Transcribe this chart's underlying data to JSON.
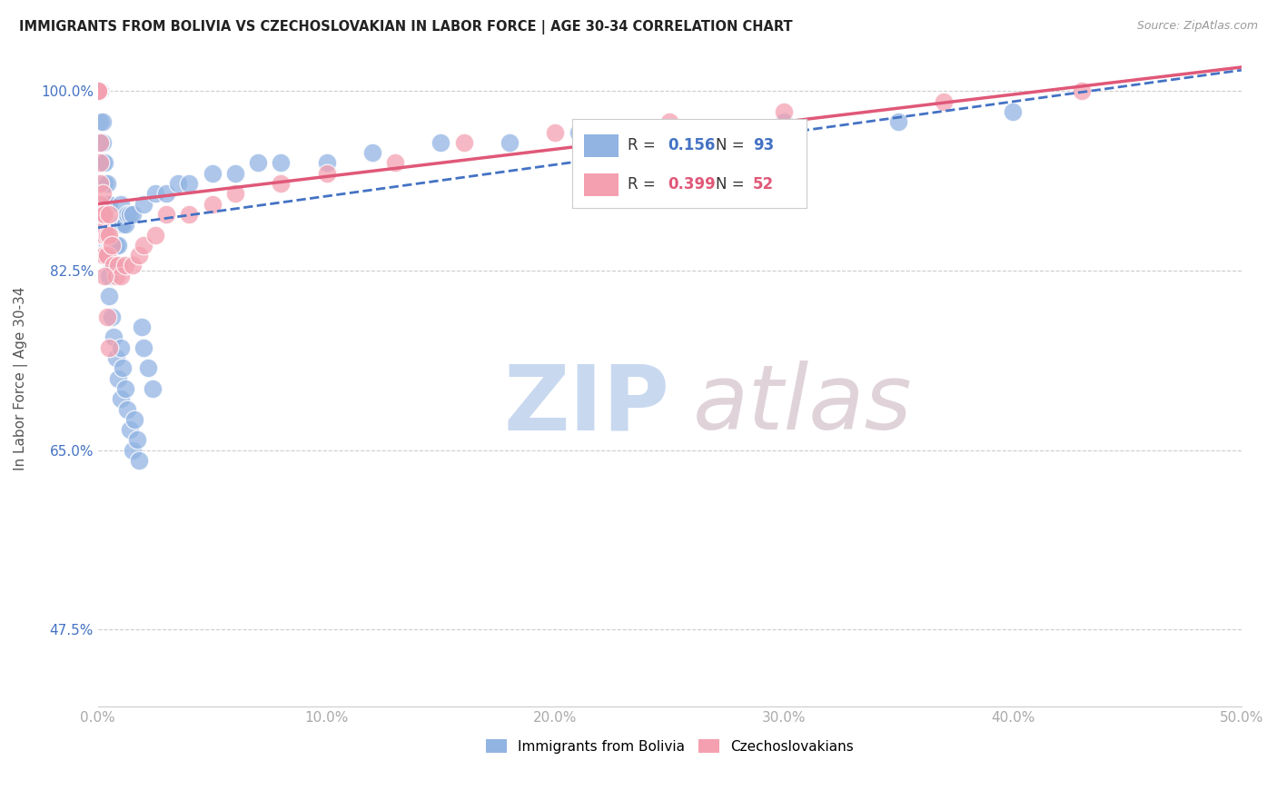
{
  "title": "IMMIGRANTS FROM BOLIVIA VS CZECHOSLOVAKIAN IN LABOR FORCE | AGE 30-34 CORRELATION CHART",
  "source": "Source: ZipAtlas.com",
  "xlabel_ticks": [
    "0.0%",
    "10.0%",
    "20.0%",
    "30.0%",
    "40.0%",
    "50.0%"
  ],
  "ylabel_ticks": [
    "47.5%",
    "65.0%",
    "82.5%",
    "100.0%"
  ],
  "ylabel_label": "In Labor Force | Age 30-34",
  "legend_bolivia": "Immigrants from Bolivia",
  "legend_czech": "Czechoslovakians",
  "R_bolivia": 0.156,
  "N_bolivia": 93,
  "R_czech": 0.399,
  "N_czech": 52,
  "bolivia_color": "#92b4e3",
  "czech_color": "#f4a0b0",
  "bolivia_line_color": "#4472c4",
  "czech_line_color": "#e05878",
  "xlim": [
    0.0,
    0.5
  ],
  "ylim": [
    0.4,
    1.04
  ],
  "bolivia_x": [
    0.0,
    0.0,
    0.0,
    0.0,
    0.0,
    0.0,
    0.0,
    0.0,
    0.0,
    0.0,
    0.001,
    0.001,
    0.001,
    0.001,
    0.001,
    0.001,
    0.001,
    0.001,
    0.002,
    0.002,
    0.002,
    0.002,
    0.002,
    0.002,
    0.003,
    0.003,
    0.003,
    0.003,
    0.003,
    0.004,
    0.004,
    0.004,
    0.004,
    0.005,
    0.005,
    0.005,
    0.006,
    0.006,
    0.006,
    0.007,
    0.007,
    0.008,
    0.008,
    0.009,
    0.009,
    0.01,
    0.01,
    0.011,
    0.012,
    0.013,
    0.014,
    0.015,
    0.02,
    0.025,
    0.03,
    0.035,
    0.04,
    0.05,
    0.06,
    0.07,
    0.08,
    0.1,
    0.12,
    0.15,
    0.18,
    0.21,
    0.25,
    0.3,
    0.35,
    0.4,
    0.002,
    0.003,
    0.004,
    0.005,
    0.005,
    0.006,
    0.007,
    0.008,
    0.009,
    0.01,
    0.01,
    0.011,
    0.012,
    0.013,
    0.014,
    0.015,
    0.016,
    0.017,
    0.018,
    0.019,
    0.02,
    0.022,
    0.024
  ],
  "bolivia_y": [
    1.0,
    1.0,
    1.0,
    1.0,
    1.0,
    1.0,
    1.0,
    1.0,
    1.0,
    1.0,
    1.0,
    1.0,
    1.0,
    1.0,
    0.97,
    0.95,
    0.93,
    0.91,
    0.97,
    0.95,
    0.93,
    0.91,
    0.89,
    0.87,
    0.93,
    0.91,
    0.89,
    0.87,
    0.85,
    0.91,
    0.89,
    0.87,
    0.85,
    0.89,
    0.87,
    0.85,
    0.87,
    0.85,
    0.83,
    0.85,
    0.83,
    0.87,
    0.85,
    0.87,
    0.85,
    0.89,
    0.87,
    0.87,
    0.87,
    0.88,
    0.88,
    0.88,
    0.89,
    0.9,
    0.9,
    0.91,
    0.91,
    0.92,
    0.92,
    0.93,
    0.93,
    0.93,
    0.94,
    0.95,
    0.95,
    0.96,
    0.96,
    0.97,
    0.97,
    0.98,
    0.88,
    0.86,
    0.84,
    0.82,
    0.8,
    0.78,
    0.76,
    0.74,
    0.72,
    0.7,
    0.75,
    0.73,
    0.71,
    0.69,
    0.67,
    0.65,
    0.68,
    0.66,
    0.64,
    0.77,
    0.75,
    0.73,
    0.71
  ],
  "czech_x": [
    0.0,
    0.0,
    0.0,
    0.0,
    0.0,
    0.0,
    0.0,
    0.0,
    0.0,
    0.0,
    0.001,
    0.001,
    0.001,
    0.001,
    0.001,
    0.002,
    0.002,
    0.002,
    0.002,
    0.003,
    0.003,
    0.003,
    0.004,
    0.004,
    0.005,
    0.005,
    0.006,
    0.007,
    0.008,
    0.009,
    0.01,
    0.012,
    0.015,
    0.018,
    0.02,
    0.025,
    0.03,
    0.04,
    0.05,
    0.06,
    0.08,
    0.1,
    0.13,
    0.16,
    0.2,
    0.25,
    0.3,
    0.37,
    0.43,
    0.003,
    0.004,
    0.005
  ],
  "czech_y": [
    1.0,
    1.0,
    1.0,
    1.0,
    1.0,
    1.0,
    1.0,
    1.0,
    1.0,
    1.0,
    0.95,
    0.93,
    0.91,
    0.89,
    0.87,
    0.9,
    0.88,
    0.86,
    0.84,
    0.88,
    0.86,
    0.84,
    0.86,
    0.84,
    0.88,
    0.86,
    0.85,
    0.83,
    0.82,
    0.83,
    0.82,
    0.83,
    0.83,
    0.84,
    0.85,
    0.86,
    0.88,
    0.88,
    0.89,
    0.9,
    0.91,
    0.92,
    0.93,
    0.95,
    0.96,
    0.97,
    0.98,
    0.99,
    1.0,
    0.82,
    0.78,
    0.75
  ]
}
